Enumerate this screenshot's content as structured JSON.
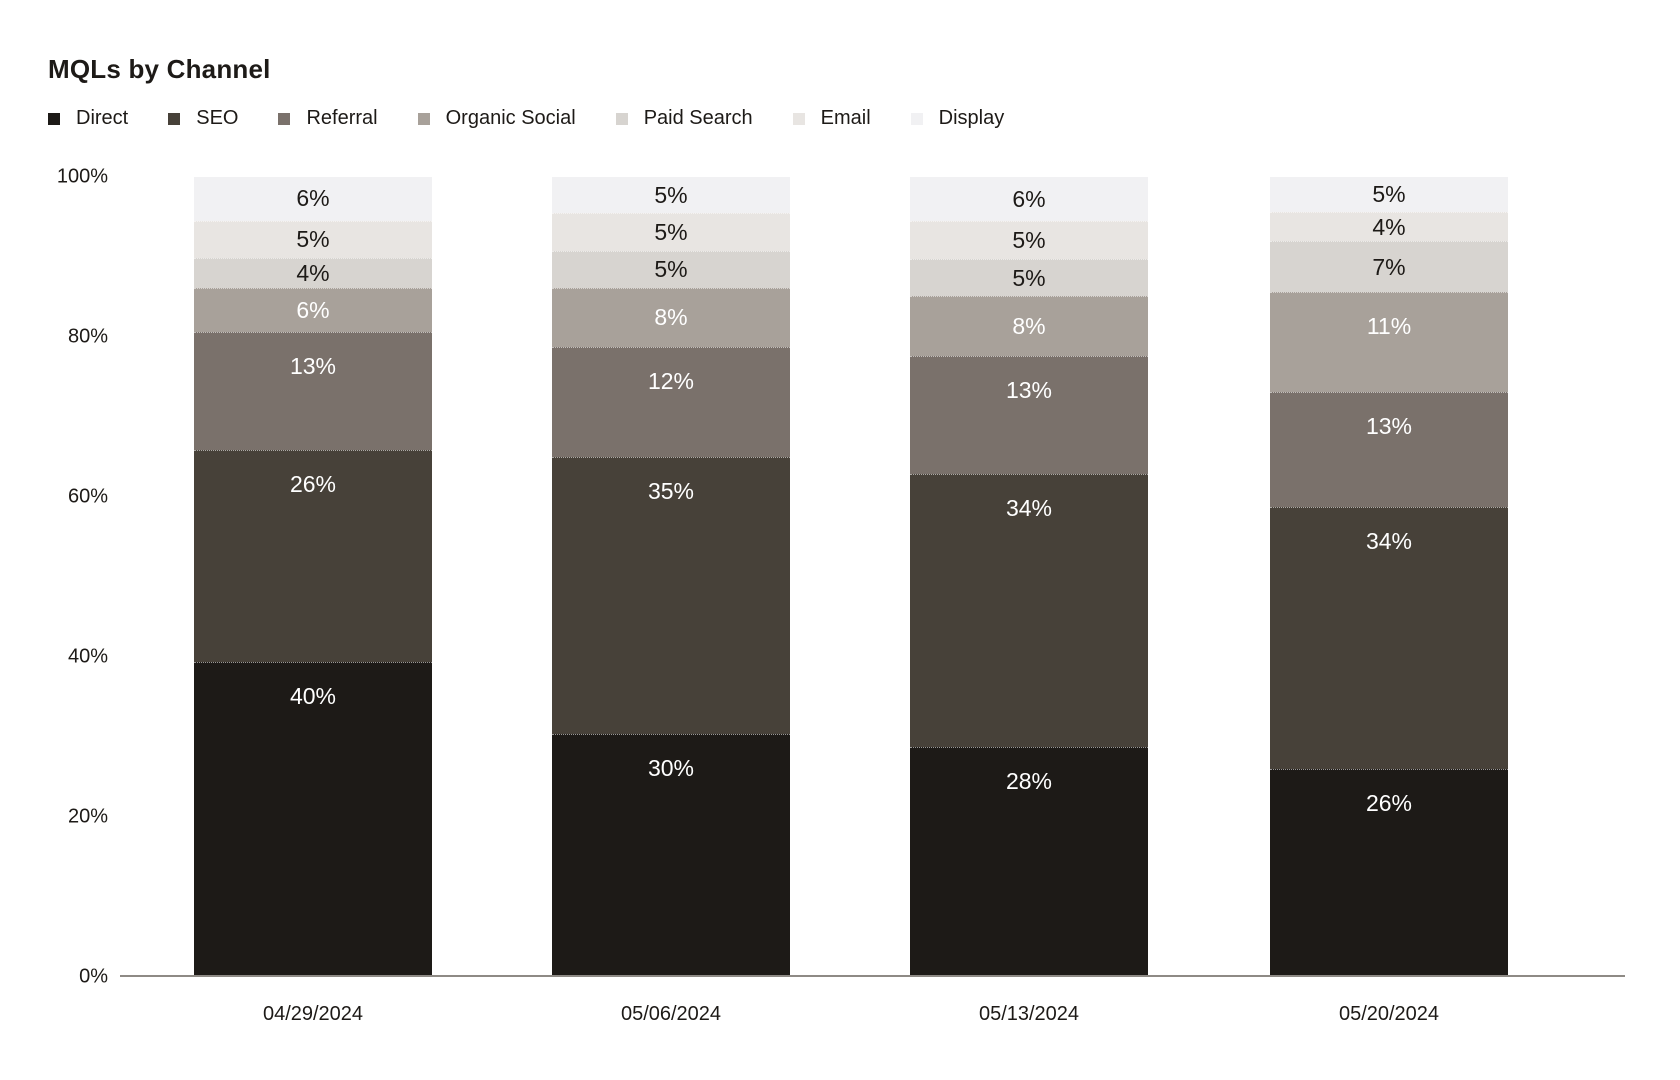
{
  "chart_data": {
    "type": "bar",
    "stacked": true,
    "title": "MQLs by Channel",
    "categories": [
      "04/29/2024",
      "05/06/2024",
      "05/13/2024",
      "05/20/2024"
    ],
    "series": [
      {
        "name": "Direct",
        "color": "#1d1a17",
        "label_color": "#ffffff",
        "values": [
          40,
          30,
          28,
          26
        ]
      },
      {
        "name": "SEO",
        "color": "#474139",
        "label_color": "#ffffff",
        "values": [
          26,
          35,
          34,
          34
        ]
      },
      {
        "name": "Referral",
        "color": "#7a716b",
        "label_color": "#ffffff",
        "values": [
          13,
          12,
          13,
          13
        ]
      },
      {
        "name": "Organic Social",
        "color": "#a8a19a",
        "label_color": "#ffffff",
        "values": [
          6,
          8,
          8,
          11
        ]
      },
      {
        "name": "Paid Search",
        "color": "#d7d4d0",
        "label_color": "#1d1a17",
        "values": [
          4,
          5,
          5,
          7
        ]
      },
      {
        "name": "Email",
        "color": "#e8e5e2",
        "label_color": "#1d1a17",
        "values": [
          5,
          5,
          5,
          4
        ]
      },
      {
        "name": "Display",
        "color": "#f1f1f3",
        "label_color": "#1d1a17",
        "values": [
          6,
          5,
          6,
          5
        ]
      }
    ],
    "value_suffix": "%",
    "y_ticks": [
      "0%",
      "20%",
      "40%",
      "60%",
      "80%",
      "100%"
    ],
    "ylim": [
      0,
      100
    ],
    "grid": false,
    "legend_position": "top",
    "axis_line_color": "#8e8a85",
    "text_color": "#1d1a17"
  }
}
